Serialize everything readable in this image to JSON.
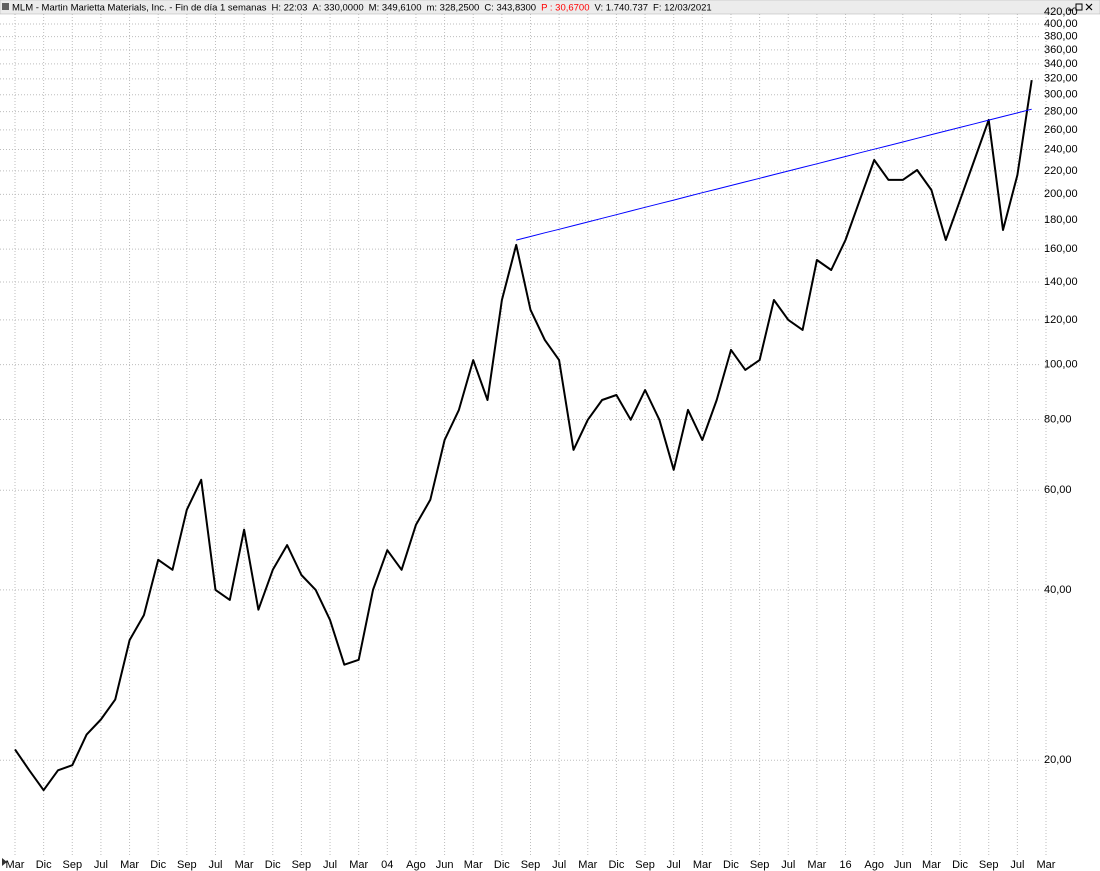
{
  "chart_data": {
    "type": "line",
    "title": "MLM - Martin Marietta Materials, Inc. - Fin de día 1 semanas",
    "header_items": [
      {
        "text": "H: 22:03",
        "color": "#000000"
      },
      {
        "text": "A: 330,0000",
        "color": "#000000"
      },
      {
        "text": "M: 349,6100",
        "color": "#000000"
      },
      {
        "text": "m: 328,2500",
        "color": "#000000"
      },
      {
        "text": "C: 343,8300",
        "color": "#000000"
      },
      {
        "text": "P : 30,6700",
        "color": "#ff0000"
      },
      {
        "text": "V: 1.740.737",
        "color": "#000000"
      },
      {
        "text": "F: 12/03/2021",
        "color": "#000000"
      }
    ],
    "log_scale": true,
    "grid": true,
    "categories": [
      "Mar",
      null,
      "Dic",
      null,
      "Sep",
      null,
      "Jul",
      null,
      "Mar",
      null,
      "Dic",
      null,
      "Sep",
      null,
      "Jul",
      null,
      "Mar",
      null,
      "Dic",
      null,
      "Sep",
      null,
      "Jul",
      null,
      "Mar",
      null,
      "04",
      null,
      "Ago",
      null,
      "Jun",
      null,
      "Mar",
      null,
      "Dic",
      null,
      "Sep",
      null,
      "Jul",
      null,
      "Mar",
      null,
      "Dic",
      null,
      "Sep",
      null,
      "Jul",
      null,
      "Mar",
      null,
      "Dic",
      null,
      "Sep",
      null,
      "Jul",
      null,
      "Mar",
      null,
      "16",
      null,
      "Ago",
      null,
      "Jun",
      null,
      "Mar",
      null,
      "Dic",
      null,
      "Sep",
      null,
      "Jul",
      null,
      "Mar"
    ],
    "series": [
      {
        "color": "#000000",
        "values": [
          20.9,
          19.2,
          17.7,
          19.2,
          19.6,
          22.2,
          23.6,
          25.6,
          32.6,
          36.1,
          45.2,
          43.4,
          55.4,
          62.6,
          40.0,
          38.4,
          51.1,
          36.9,
          43.4,
          48.0,
          42.5,
          40.0,
          35.4,
          29.5,
          30.1,
          40.0,
          47.0,
          43.4,
          52.1,
          57.7,
          73.6,
          83.2,
          101.9,
          86.6,
          130.1,
          162.8,
          125.0,
          110.6,
          101.9,
          70.7,
          79.9,
          86.6,
          88.4,
          79.9,
          90.2,
          79.9,
          65.2,
          83.2,
          73.6,
          86.6,
          106.2,
          97.9,
          101.9,
          130.1,
          120.0,
          115.2,
          153.1,
          147.0,
          166.1,
          195.4,
          230.0,
          212.1,
          212.1,
          220.8,
          203.6,
          166.1,
          195.4,
          230.0,
          270.8,
          173.0,
          216.4,
          318.4,
          null
        ]
      },
      {
        "color": "#0000ff",
        "values": [
          null,
          null,
          null,
          null,
          null,
          null,
          null,
          null,
          null,
          null,
          null,
          null,
          null,
          null,
          null,
          null,
          null,
          null,
          null,
          null,
          null,
          null,
          null,
          null,
          null,
          null,
          null,
          null,
          null,
          null,
          null,
          null,
          null,
          null,
          null,
          166.0,
          168.5,
          171.0,
          173.5,
          176.1,
          178.7,
          181.4,
          184.1,
          186.9,
          189.7,
          192.5,
          195.4,
          198.3,
          201.3,
          204.3,
          207.3,
          210.4,
          213.5,
          216.7,
          219.9,
          223.2,
          226.5,
          229.9,
          233.3,
          236.8,
          240.3,
          243.9,
          247.5,
          251.2,
          255.0,
          258.8,
          262.6,
          266.5,
          270.5,
          274.5,
          278.6,
          282.8,
          null
        ]
      }
    ],
    "ylim": [
      13.6,
      420
    ],
    "yticks": [
      {
        "value": 20,
        "label": "20,00"
      },
      {
        "value": 40,
        "label": "40,00"
      },
      {
        "value": 60,
        "label": "60,00"
      },
      {
        "value": 80,
        "label": "80,00"
      },
      {
        "value": 100,
        "label": "100,00"
      },
      {
        "value": 120,
        "label": "120,00"
      },
      {
        "value": 140,
        "label": "140,00"
      },
      {
        "value": 160,
        "label": "160,00"
      },
      {
        "value": 180,
        "label": "180,00"
      },
      {
        "value": 200,
        "label": "200,00"
      },
      {
        "value": 220,
        "label": "220,00"
      },
      {
        "value": 240,
        "label": "240,00"
      },
      {
        "value": 260,
        "label": "260,00"
      },
      {
        "value": 280,
        "label": "280,00"
      },
      {
        "value": 300,
        "label": "300,00"
      },
      {
        "value": 320,
        "label": "320,00"
      },
      {
        "value": 340,
        "label": "340,00"
      },
      {
        "value": 360,
        "label": "360,00"
      },
      {
        "value": 380,
        "label": "380,00"
      },
      {
        "value": 400,
        "label": "400,00"
      },
      {
        "value": 420,
        "label": "420,00"
      }
    ]
  }
}
